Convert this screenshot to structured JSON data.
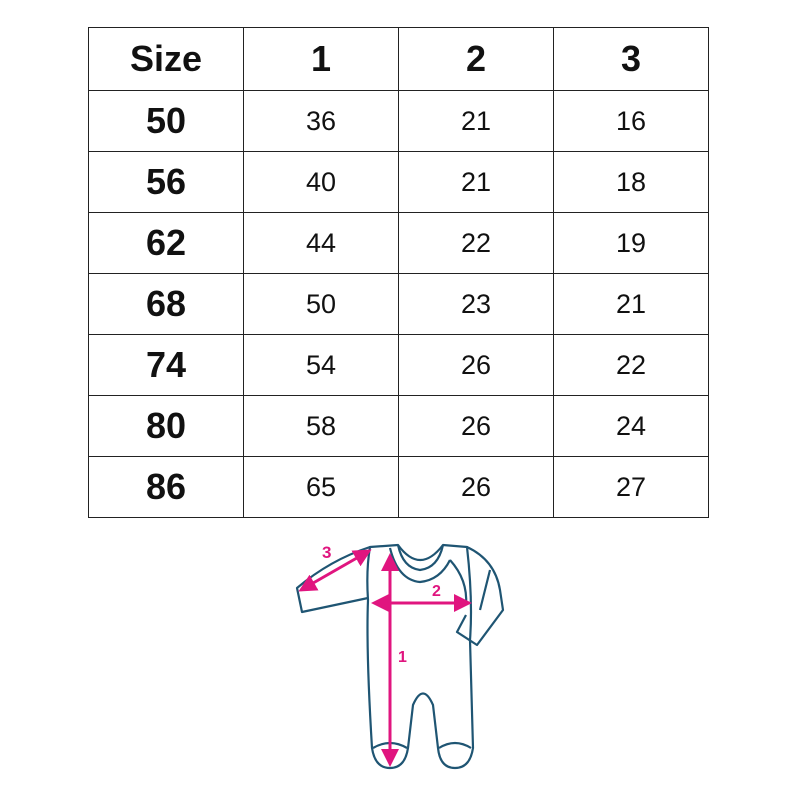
{
  "table": {
    "headers": [
      "Size",
      "1",
      "2",
      "3"
    ],
    "rows": [
      [
        "50",
        "36",
        "21",
        "16"
      ],
      [
        "56",
        "40",
        "21",
        "18"
      ],
      [
        "62",
        "44",
        "22",
        "19"
      ],
      [
        "68",
        "50",
        "23",
        "21"
      ],
      [
        "74",
        "54",
        "26",
        "22"
      ],
      [
        "80",
        "58",
        "26",
        "24"
      ],
      [
        "86",
        "65",
        "26",
        "27"
      ]
    ]
  },
  "diagram": {
    "labels": {
      "length": "1",
      "width": "2",
      "sleeve": "3"
    },
    "colors": {
      "outline": "#1f5573",
      "arrow": "#e0157f"
    }
  }
}
